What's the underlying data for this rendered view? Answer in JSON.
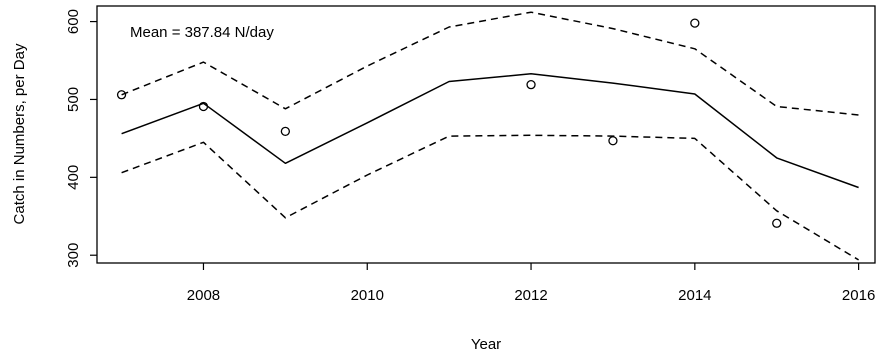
{
  "chart_data": {
    "type": "line",
    "xlabel": "Year",
    "ylabel": "Catch in Numbers, per Day",
    "annotation": "Mean =  387.84  N/day",
    "xlim": [
      2006.7,
      2016.2
    ],
    "ylim": [
      290,
      620
    ],
    "x_ticks": [
      2008,
      2010,
      2012,
      2014,
      2016
    ],
    "y_ticks": [
      300,
      400,
      500,
      600
    ],
    "grid": false,
    "series": [
      {
        "style": "solid",
        "x": [
          2007,
          2008,
          2009,
          2010,
          2011,
          2012,
          2013,
          2014,
          2015,
          2016
        ],
        "y": [
          456,
          495,
          418,
          470,
          523,
          533,
          521,
          507,
          425,
          387
        ]
      },
      {
        "style": "dashed",
        "x": [
          2007,
          2008,
          2009,
          2010,
          2011,
          2012,
          2013,
          2014,
          2015,
          2016
        ],
        "y": [
          506,
          548,
          488,
          543,
          593,
          612,
          591,
          565,
          491,
          480
        ]
      },
      {
        "style": "dashed",
        "x": [
          2007,
          2008,
          2009,
          2010,
          2011,
          2012,
          2013,
          2014,
          2015,
          2016
        ],
        "y": [
          406,
          445,
          348,
          403,
          453,
          454,
          453,
          450,
          357,
          294
        ]
      },
      {
        "style": "points",
        "x": [
          2007,
          2008,
          2009,
          2012,
          2013,
          2014,
          2015
        ],
        "y": [
          506,
          491,
          459,
          519,
          447,
          598,
          341
        ]
      }
    ]
  }
}
